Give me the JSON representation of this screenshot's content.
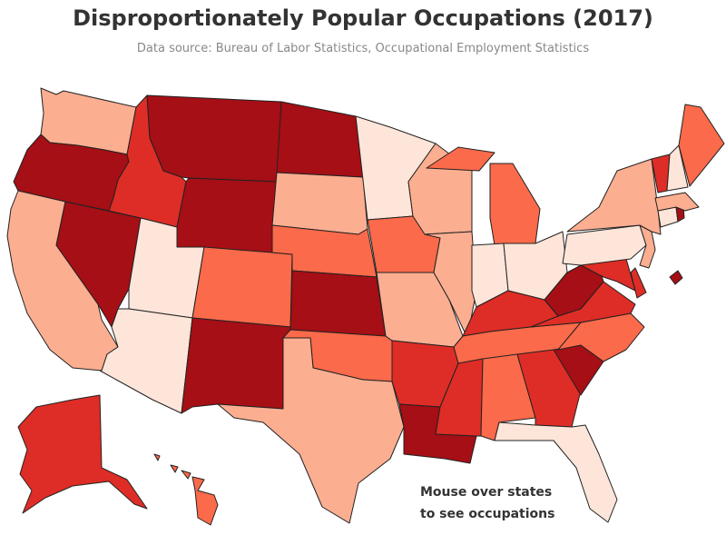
{
  "title": "Disproportionately Popular Occupations (2017)",
  "subtitle": "Data source: Bureau of Labor Statistics, Occupational Employment Statistics",
  "hint": {
    "line1": "Mouse over states",
    "line2": "to see occupations"
  },
  "colors": {
    "title": "#333333",
    "subtitle": "#888888",
    "hint": "#333333",
    "darkest": "#a50f15",
    "dark": "#de2d26",
    "medium": "#fb6a4a",
    "light": "#fcae91",
    "lightest": "#fee5d9"
  },
  "states": [
    {
      "id": "WA",
      "shade": "light"
    },
    {
      "id": "OR",
      "shade": "darkest"
    },
    {
      "id": "CA",
      "shade": "light"
    },
    {
      "id": "NV",
      "shade": "darkest"
    },
    {
      "id": "ID",
      "shade": "dark"
    },
    {
      "id": "MT",
      "shade": "darkest"
    },
    {
      "id": "WY",
      "shade": "darkest"
    },
    {
      "id": "UT",
      "shade": "lightest"
    },
    {
      "id": "AZ",
      "shade": "lightest"
    },
    {
      "id": "CO",
      "shade": "medium"
    },
    {
      "id": "NM",
      "shade": "darkest"
    },
    {
      "id": "ND",
      "shade": "darkest"
    },
    {
      "id": "SD",
      "shade": "light"
    },
    {
      "id": "NE",
      "shade": "medium"
    },
    {
      "id": "KS",
      "shade": "darkest"
    },
    {
      "id": "OK",
      "shade": "medium"
    },
    {
      "id": "TX",
      "shade": "light"
    },
    {
      "id": "MN",
      "shade": "lightest"
    },
    {
      "id": "IA",
      "shade": "medium"
    },
    {
      "id": "MO",
      "shade": "light"
    },
    {
      "id": "AR",
      "shade": "dark"
    },
    {
      "id": "LA",
      "shade": "darkest"
    },
    {
      "id": "WI",
      "shade": "light"
    },
    {
      "id": "IL",
      "shade": "light"
    },
    {
      "id": "MI",
      "shade": "medium"
    },
    {
      "id": "IN",
      "shade": "lightest"
    },
    {
      "id": "OH",
      "shade": "lightest"
    },
    {
      "id": "KY",
      "shade": "dark"
    },
    {
      "id": "TN",
      "shade": "medium"
    },
    {
      "id": "MS",
      "shade": "dark"
    },
    {
      "id": "AL",
      "shade": "medium"
    },
    {
      "id": "GA",
      "shade": "dark"
    },
    {
      "id": "FL",
      "shade": "lightest"
    },
    {
      "id": "SC",
      "shade": "darkest"
    },
    {
      "id": "NC",
      "shade": "medium"
    },
    {
      "id": "VA",
      "shade": "dark"
    },
    {
      "id": "WV",
      "shade": "darkest"
    },
    {
      "id": "MD",
      "shade": "dark"
    },
    {
      "id": "DE",
      "shade": "dark"
    },
    {
      "id": "DC",
      "shade": "darkest"
    },
    {
      "id": "PA",
      "shade": "lightest"
    },
    {
      "id": "NJ",
      "shade": "light"
    },
    {
      "id": "NY",
      "shade": "light"
    },
    {
      "id": "CT",
      "shade": "lightest"
    },
    {
      "id": "RI",
      "shade": "darkest"
    },
    {
      "id": "MA",
      "shade": "light"
    },
    {
      "id": "VT",
      "shade": "dark"
    },
    {
      "id": "NH",
      "shade": "lightest"
    },
    {
      "id": "ME",
      "shade": "medium"
    },
    {
      "id": "AK",
      "shade": "dark"
    },
    {
      "id": "HI",
      "shade": "medium"
    }
  ]
}
